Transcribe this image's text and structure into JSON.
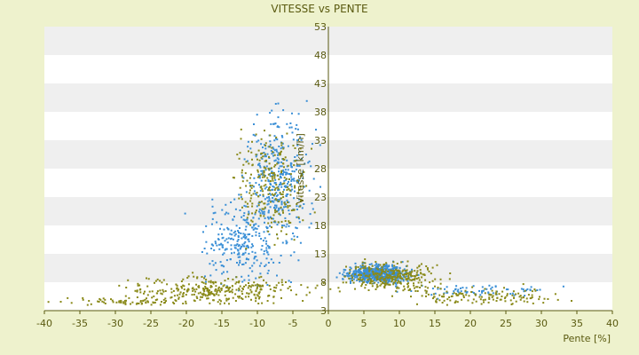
{
  "chart_data": {
    "type": "scatter",
    "title": "VITESSE vs PENTE",
    "xlabel": "Pente [%]",
    "ylabel": "Vitesse [km/h]",
    "xlim": [
      -40,
      40
    ],
    "ylim": [
      3,
      53
    ],
    "xticks": [
      -40,
      -35,
      -30,
      -25,
      -20,
      -15,
      -10,
      -5,
      0,
      5,
      10,
      15,
      20,
      25,
      30,
      35,
      40
    ],
    "yticks": [
      3,
      8,
      13,
      18,
      23,
      28,
      33,
      38,
      43,
      48,
      53
    ],
    "grid": "horizontal bands",
    "legend": "none",
    "colors": {
      "page_background": "#eef2cd",
      "plot_background": "#ffffff",
      "band": "#efefef",
      "series_blue": "#3a8fd6",
      "series_olive": "#8a8a1a",
      "axis": "#5a5a10"
    },
    "series": [
      {
        "color": "#3a8fd6",
        "description_clusters": [
          {
            "x_center": -7,
            "x_spread": 3.5,
            "y_center": 26,
            "y_spread": 9,
            "count": 380
          },
          {
            "x_center": -12,
            "x_spread": 4.5,
            "y_center": 15,
            "y_spread": 6,
            "count": 260
          },
          {
            "x_center": 7,
            "x_spread": 3.5,
            "y_center": 9.5,
            "y_spread": 1.2,
            "count": 650
          },
          {
            "x_center": 20,
            "x_spread": 8,
            "y_center": 6.5,
            "y_spread": 0.9,
            "count": 70
          }
        ]
      },
      {
        "color": "#8a8a1a",
        "description_clusters": [
          {
            "x_center": -8,
            "x_spread": 4,
            "y_center": 25,
            "y_spread": 7,
            "count": 250
          },
          {
            "x_center": -15,
            "x_spread": 10,
            "y_center": 6.5,
            "y_spread": 2,
            "count": 330
          },
          {
            "x_center": -30,
            "x_spread": 8,
            "y_center": 4.5,
            "y_spread": 0.6,
            "count": 60
          },
          {
            "x_center": 9,
            "x_spread": 5,
            "y_center": 9,
            "y_spread": 2,
            "count": 300
          },
          {
            "x_center": 22,
            "x_spread": 9,
            "y_center": 5.5,
            "y_spread": 1.3,
            "count": 140
          }
        ]
      }
    ]
  }
}
